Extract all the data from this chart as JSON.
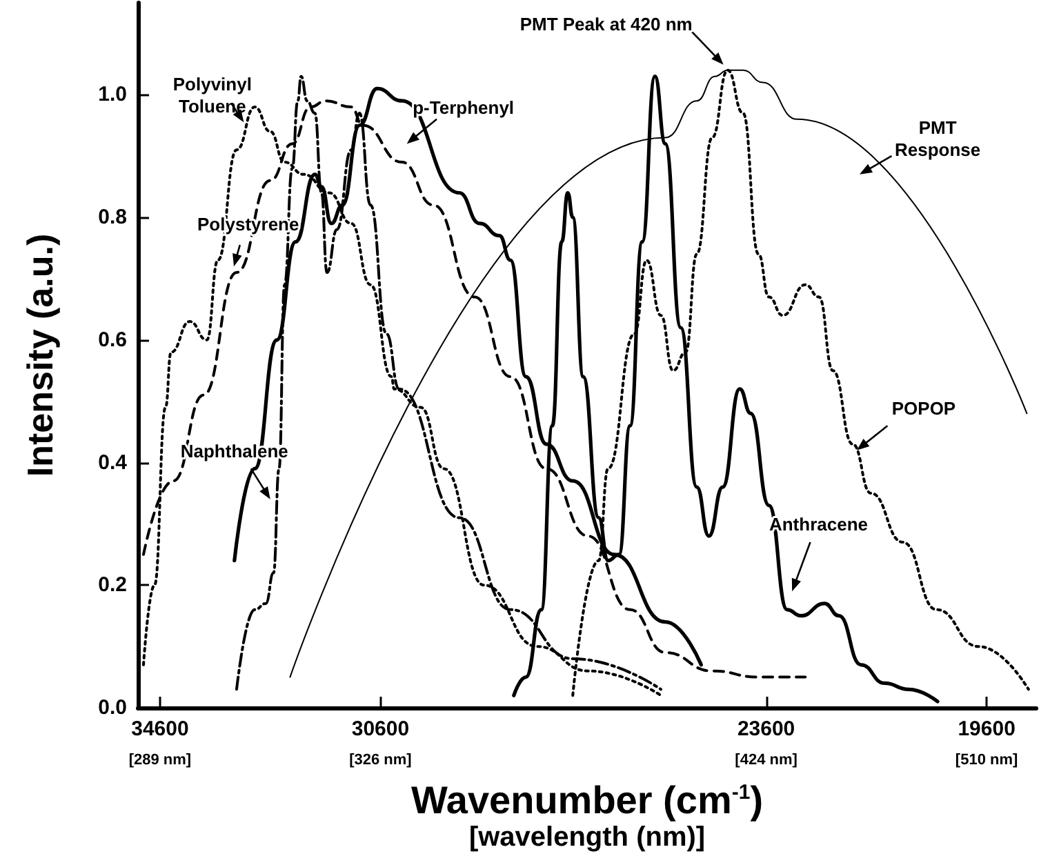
{
  "chart_data": {
    "type": "line",
    "xlabel": "Wavenumber (cm$^{-1}$)\n[wavelength (nm)]",
    "ylabel": "Intensity (a.u.)",
    "xlim": [
      35000,
      18700
    ],
    "xticks": [
      34600,
      30600,
      23600,
      19600
    ],
    "ylim": [
      0,
      1.15
    ],
    "yticks": [
      {
        "value": 0,
        "label": "0.0"
      },
      {
        "value": 0.2,
        "label": "0.2"
      },
      {
        "value": 0.4,
        "label": "0.4"
      },
      {
        "value": 0.6,
        "label": "0.6"
      },
      {
        "value": 0.8,
        "label": "0.8"
      },
      {
        "value": 1,
        "label": "1.0"
      }
    ],
    "marker": "none",
    "legend": false,
    "annotations": [
      {
        "text": "PMT Peak at 420 nm",
        "x": 24300,
        "y": 1.04
      },
      "[289 nm]",
      "[326 nm]",
      "[424 nm]",
      "[510 nm]"
    ],
    "series": [
      {
        "name": "Polyvinyl\nToluene",
        "color": "#000000",
        "line_style": "dotted",
        "x": [
          34900,
          34700,
          34500,
          34400,
          34060,
          33750,
          33550,
          33210,
          32880,
          32600,
          32340,
          31990,
          31530,
          31130,
          30780,
          30400,
          30350,
          29870,
          29450,
          28720,
          27760,
          26830,
          25510
        ],
        "values": [
          0.07,
          0.2,
          0.49,
          0.58,
          0.63,
          0.6,
          0.73,
          0.91,
          0.98,
          0.94,
          0.89,
          0.87,
          0.84,
          0.79,
          0.69,
          0.54,
          0.52,
          0.49,
          0.39,
          0.2,
          0.1,
          0.06,
          0.02
        ]
      },
      {
        "name": "Polystyrene",
        "color": "#000000",
        "line_style": "dashed",
        "x": [
          34900,
          34360,
          33810,
          33210,
          32600,
          32200,
          31870,
          31590,
          31130,
          30920,
          30210,
          29640,
          28890,
          28240,
          27590,
          26830,
          26070,
          25430,
          24580,
          23740,
          22890
        ],
        "values": [
          0.25,
          0.37,
          0.51,
          0.71,
          0.86,
          0.92,
          0.98,
          0.99,
          0.98,
          0.95,
          0.89,
          0.82,
          0.67,
          0.54,
          0.39,
          0.28,
          0.16,
          0.09,
          0.06,
          0.05,
          0.05
        ]
      },
      {
        "name": "Naphthalene",
        "color": "#000000",
        "line_style": "dashdot",
        "x": [
          33210,
          32880,
          32680,
          32540,
          32440,
          32340,
          32200,
          32100,
          32040,
          31930,
          31790,
          31670,
          31570,
          31390,
          31130,
          30980,
          30780,
          30490,
          30260,
          29170,
          28240,
          27110,
          25510
        ],
        "values": [
          0.03,
          0.16,
          0.17,
          0.22,
          0.39,
          0.69,
          0.88,
          0.99,
          1.03,
          0.99,
          0.97,
          0.84,
          0.71,
          0.78,
          0.91,
          0.97,
          0.82,
          0.61,
          0.52,
          0.31,
          0.16,
          0.08,
          0.03
        ]
      },
      {
        "name": "p-Terphenyl",
        "color": "#000000",
        "line_style": "solid",
        "x": [
          33250,
          32880,
          32480,
          32140,
          31790,
          31670,
          31490,
          31290,
          30980,
          30660,
          30210,
          29170,
          28800,
          28440,
          28240,
          27960,
          27590,
          27110,
          26360,
          25430,
          24780
        ],
        "values": [
          0.24,
          0.39,
          0.6,
          0.76,
          0.87,
          0.85,
          0.79,
          0.82,
          0.95,
          1.01,
          0.99,
          0.84,
          0.79,
          0.77,
          0.73,
          0.54,
          0.43,
          0.37,
          0.25,
          0.14,
          0.07
        ]
      },
      {
        "name": "Anthracene",
        "color": "#000000",
        "line_style": "solid",
        "x": [
          28180,
          27960,
          27680,
          27480,
          27310,
          27200,
          27110,
          26920,
          26640,
          26470,
          26270,
          26070,
          25850,
          25620,
          25430,
          25150,
          24860,
          24640,
          24390,
          24080,
          23880,
          23550,
          23220,
          22970,
          22540,
          22280,
          21880,
          21450,
          21020,
          20490
        ],
        "values": [
          0.02,
          0.05,
          0.16,
          0.46,
          0.76,
          0.84,
          0.8,
          0.54,
          0.31,
          0.24,
          0.25,
          0.46,
          0.76,
          1.03,
          0.92,
          0.62,
          0.36,
          0.28,
          0.36,
          0.52,
          0.48,
          0.33,
          0.16,
          0.15,
          0.17,
          0.15,
          0.07,
          0.04,
          0.03,
          0.01
        ]
      },
      {
        "name": "POPOP",
        "color": "#000000",
        "line_style": "dotted",
        "x": [
          27110,
          26640,
          26470,
          25990,
          25770,
          25510,
          25290,
          25060,
          24860,
          24580,
          24300,
          24020,
          23740,
          23550,
          23300,
          22890,
          22640,
          22390,
          22030,
          21700,
          21120,
          20510,
          19750,
          18840
        ],
        "values": [
          0.02,
          0.24,
          0.39,
          0.61,
          0.73,
          0.64,
          0.55,
          0.58,
          0.74,
          0.93,
          1.04,
          0.97,
          0.74,
          0.67,
          0.64,
          0.69,
          0.67,
          0.55,
          0.43,
          0.35,
          0.27,
          0.16,
          0.1,
          0.03
        ]
      },
      {
        "name": "PMT\nResponse",
        "color": "#000000",
        "line_style": "solid",
        "x": [
          32240,
          25430,
          24860,
          24530,
          24300,
          24020,
          23660,
          23040,
          18870
        ],
        "values": [
          0.05,
          0.93,
          0.99,
          1.03,
          1.04,
          1.04,
          1.02,
          0.96,
          0.48
        ]
      }
    ]
  }
}
